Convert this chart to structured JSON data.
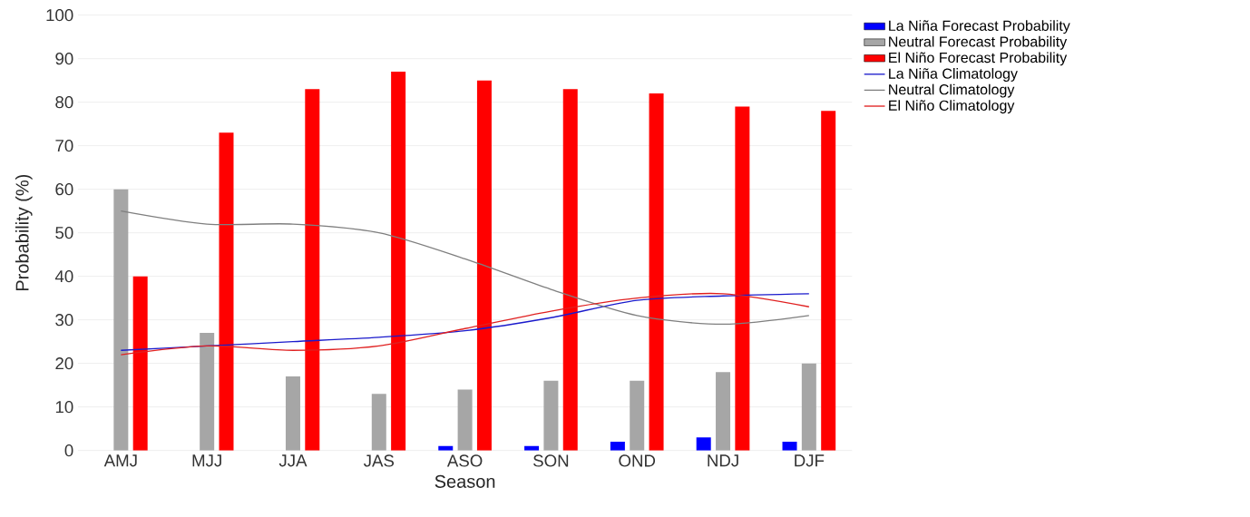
{
  "chart_data": {
    "type": "bar",
    "xlabel": "Season",
    "ylabel": "Probability (%)",
    "categories": [
      "AMJ",
      "MJJ",
      "JJA",
      "JAS",
      "ASO",
      "SON",
      "OND",
      "NDJ",
      "DJF"
    ],
    "series": [
      {
        "name": "La Niña Forecast Probability",
        "color": "#0000ff",
        "values": [
          0,
          0,
          0,
          0,
          1,
          1,
          2,
          3,
          2
        ]
      },
      {
        "name": "Neutral Forecast Probability",
        "color": "#a6a6a6",
        "values": [
          60,
          27,
          17,
          13,
          14,
          16,
          16,
          18,
          20
        ]
      },
      {
        "name": "El Niño Forecast Probability",
        "color": "#ff0000",
        "values": [
          40,
          73,
          83,
          87,
          85,
          83,
          82,
          79,
          78
        ]
      },
      {
        "name": "La Niña Climatology",
        "type": "line",
        "color": "#1a1acc",
        "values": [
          23,
          24,
          25,
          26,
          27.5,
          30.5,
          34.5,
          35.5,
          36
        ]
      },
      {
        "name": "Neutral Climatology",
        "type": "line",
        "color": "#7f7f7f",
        "values": [
          55,
          52,
          52,
          50,
          44,
          37,
          31,
          29,
          31
        ]
      },
      {
        "name": "El Niño Climatology",
        "type": "line",
        "color": "#e02020",
        "values": [
          22,
          24,
          23,
          24,
          28,
          32,
          35,
          36,
          33
        ]
      }
    ],
    "ylim": [
      0,
      100
    ],
    "yticks": [
      0,
      10,
      20,
      30,
      40,
      50,
      60,
      70,
      80,
      90,
      100
    ],
    "grid": "y",
    "legend": "top right",
    "marker": "none",
    "line_style": "solid"
  }
}
